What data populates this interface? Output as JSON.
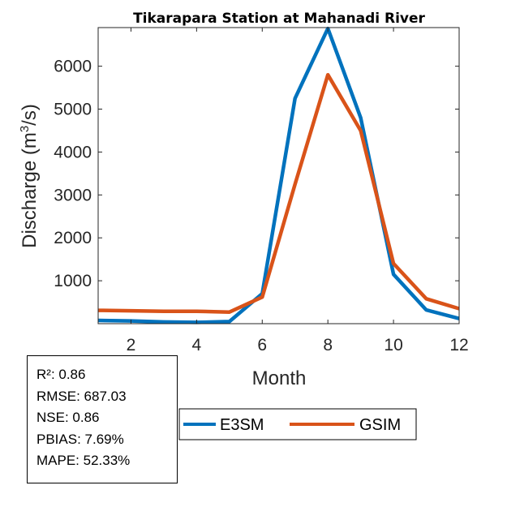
{
  "chart_data": {
    "type": "line",
    "title": "Tikarapara  Station at  Mahanadi  River",
    "xlabel": "Month",
    "ylabel_main": "Discharge (m",
    "ylabel_sup": "3",
    "ylabel_end": "/s)",
    "xlim": [
      1,
      12
    ],
    "ylim": [
      0,
      6900
    ],
    "xticks": [
      2,
      4,
      6,
      8,
      10,
      12
    ],
    "yticks": [
      1000,
      2000,
      3000,
      4000,
      5000,
      6000
    ],
    "grid": false,
    "legend_position": "bottom",
    "x": [
      1,
      2,
      3,
      4,
      5,
      6,
      7,
      8,
      9,
      10,
      11,
      12
    ],
    "series": [
      {
        "name": "E3SM",
        "color": "#0072BD",
        "values": [
          75,
          65,
          40,
          30,
          50,
          700,
          5250,
          6880,
          4800,
          1150,
          320,
          120
        ]
      },
      {
        "name": "GSIM",
        "color": "#D95319",
        "values": [
          310,
          300,
          290,
          290,
          270,
          620,
          3250,
          5800,
          4500,
          1400,
          580,
          350
        ]
      }
    ]
  },
  "stats": [
    "R²: 0.86",
    "RMSE: 687.03",
    "NSE: 0.86",
    "PBIAS: 7.69%",
    "MAPE: 52.33%"
  ]
}
